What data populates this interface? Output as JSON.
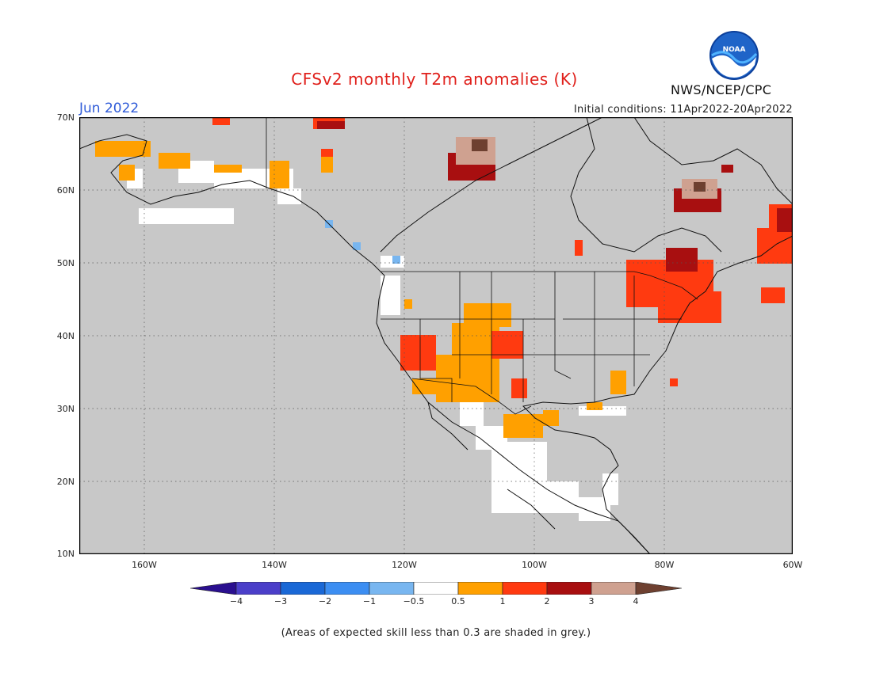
{
  "title": "CFSv2 monthly T2m anomalies (K)",
  "month_label": "Jun 2022",
  "initial_conditions": "Initial conditions: 11Apr2022-20Apr2022",
  "agency": "NWS/NCEP/CPC",
  "logo_text": "NOAA",
  "footnote": "(Areas of expected skill less than 0.3 are shaded in grey.)",
  "lat_labels": [
    "70N",
    "60N",
    "50N",
    "40N",
    "30N",
    "20N",
    "10N"
  ],
  "lon_labels": [
    "160W",
    "140W",
    "120W",
    "100W",
    "80W",
    "60W"
  ],
  "colorbar": {
    "tick_labels": [
      "−4",
      "−3",
      "−2",
      "−1",
      "−0.5",
      "0.5",
      "1",
      "2",
      "3",
      "4"
    ],
    "colors": [
      "#2a0f8f",
      "#4b3fc9",
      "#1a68d6",
      "#3c8ef2",
      "#78b6f0",
      "#ffffff",
      "#ffa000",
      "#ff3a10",
      "#a80f10",
      "#cfa190",
      "#6e4030"
    ]
  },
  "map_colors": {
    "skill_grey": "#c8c8c8",
    "near_normal": "#ffffff",
    "above_0_5": "#ffa000",
    "above_1": "#ff3a10",
    "above_2": "#a80f10",
    "above_3": "#cfa190",
    "above_4": "#6e4030",
    "below_0_5": "#78b6f0",
    "below_1": "#3c8ef2"
  }
}
